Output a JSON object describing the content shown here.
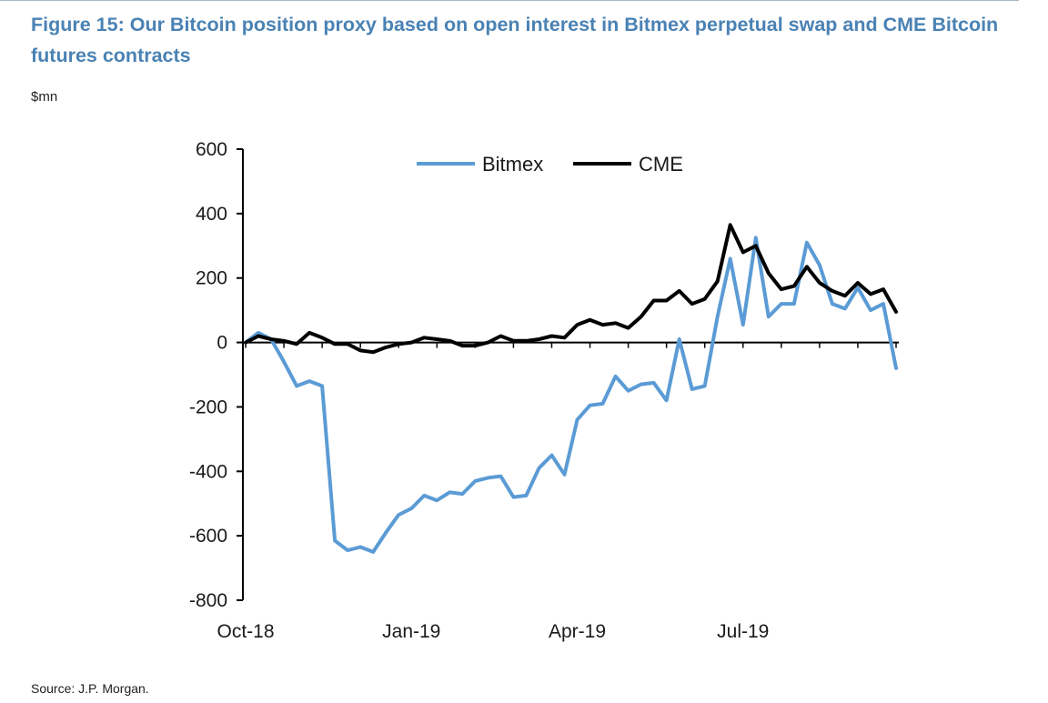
{
  "header": {
    "title": "Figure 15: Our Bitcoin position proxy based on open interest in Bitmex perpetual swap and CME Bitcoin futures contracts",
    "unit_label": "$mn"
  },
  "footer": {
    "source": "Source: J.P. Morgan."
  },
  "colors": {
    "title": "#4a82b4",
    "bitmex": "#5b9bd5",
    "cme": "#000000",
    "axis": "#000000"
  },
  "chart_data": {
    "type": "line",
    "title": "",
    "xlabel": "",
    "ylabel": "$mn",
    "ylim": [
      -800,
      600
    ],
    "y_ticks": [
      600,
      400,
      200,
      0,
      -200,
      -400,
      -600,
      -800
    ],
    "x_tick_labels": [
      "Oct-18",
      "Jan-19",
      "Apr-19",
      "Jul-19"
    ],
    "x_tick_index": [
      0,
      13,
      26,
      39
    ],
    "grid": false,
    "legend": {
      "position": "top-center",
      "entries": [
        "Bitmex",
        "CME"
      ]
    },
    "series": [
      {
        "name": "Bitmex",
        "color": "#5b9bd5",
        "values": [
          0,
          30,
          10,
          -60,
          -135,
          -120,
          -135,
          -615,
          -645,
          -635,
          -650,
          -590,
          -535,
          -515,
          -475,
          -490,
          -465,
          -470,
          -430,
          -420,
          -415,
          -480,
          -475,
          -390,
          -350,
          -410,
          -240,
          -195,
          -190,
          -105,
          -150,
          -130,
          -125,
          -180,
          10,
          -145,
          -135,
          80,
          260,
          55,
          325,
          80,
          120,
          120,
          310,
          240,
          120,
          105,
          170,
          100,
          120,
          -80
        ]
      },
      {
        "name": "CME",
        "color": "#000000",
        "values": [
          0,
          20,
          10,
          5,
          -5,
          30,
          15,
          -5,
          -5,
          -25,
          -30,
          -15,
          -5,
          0,
          15,
          10,
          5,
          -10,
          -10,
          0,
          20,
          5,
          5,
          10,
          20,
          15,
          55,
          70,
          55,
          60,
          45,
          80,
          130,
          130,
          160,
          120,
          135,
          190,
          365,
          280,
          300,
          215,
          165,
          175,
          235,
          185,
          160,
          145,
          185,
          150,
          165,
          95
        ]
      }
    ]
  }
}
